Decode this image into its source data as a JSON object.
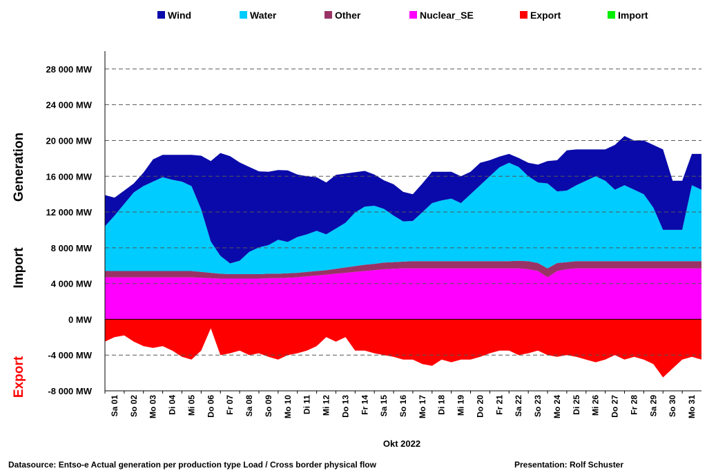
{
  "chart_data": {
    "type": "area",
    "x_title": "Okt 2022",
    "y_titles": {
      "generation": "Generation",
      "import": "Import",
      "export": "Export"
    },
    "export_color": "#ff0000",
    "ylim": [
      -8000,
      30000
    ],
    "y_ticks": [
      {
        "value": 28000,
        "label": "28 000 MW"
      },
      {
        "value": 24000,
        "label": "24 000 MW"
      },
      {
        "value": 20000,
        "label": "20 000 MW"
      },
      {
        "value": 16000,
        "label": "16 000 MW"
      },
      {
        "value": 12000,
        "label": "12 000 MW"
      },
      {
        "value": 8000,
        "label": "8 000 MW"
      },
      {
        "value": 4000,
        "label": "4 000 MW"
      },
      {
        "value": 0,
        "label": "0 MW"
      },
      {
        "value": -4000,
        "label": "-4 000 MW"
      },
      {
        "value": -8000,
        "label": "-8 000 MW"
      }
    ],
    "days": [
      "Sa 01",
      "So 02",
      "Mo 03",
      "Di 04",
      "Mi 05",
      "Do 06",
      "Fr 07",
      "Sa 08",
      "So 09",
      "Mo 10",
      "Di 11",
      "Mi 12",
      "Do 13",
      "Fr 14",
      "Sa 15",
      "So 16",
      "Mo 17",
      "Di 18",
      "Mi 19",
      "Do 20",
      "Fr 21",
      "Sa 22",
      "So 23",
      "Mo 24",
      "Di 25",
      "Mi 26",
      "Do 27",
      "Fr 28",
      "Sa 29",
      "So 30",
      "Mo 31"
    ],
    "legend": [
      {
        "name": "Wind",
        "color": "#0a0aaa"
      },
      {
        "name": "Water",
        "color": "#00ccff"
      },
      {
        "name": "Other",
        "color": "#993366"
      },
      {
        "name": "Nuclear_SE",
        "color": "#ff00ff"
      },
      {
        "name": "Export",
        "color": "#ff0000"
      },
      {
        "name": "Import",
        "color": "#00ee00"
      }
    ],
    "x": [
      0,
      0.5,
      1,
      1.5,
      2,
      2.5,
      3,
      3.5,
      4,
      4.5,
      5,
      5.5,
      6,
      6.5,
      7,
      7.5,
      8,
      8.5,
      9,
      9.5,
      10,
      10.5,
      11,
      11.5,
      12,
      12.5,
      13,
      13.5,
      14,
      14.5,
      15,
      15.5,
      16,
      16.5,
      17,
      17.5,
      18,
      18.5,
      19,
      19.5,
      20,
      20.5,
      21,
      21.5,
      22,
      22.5,
      23,
      23.5,
      24,
      24.5,
      25,
      25.5,
      26,
      26.5,
      27,
      27.5,
      28,
      28.5,
      29,
      29.5,
      30,
      30.5,
      31
    ],
    "series": [
      {
        "name": "Nuclear_SE",
        "values": [
          4700,
          4700,
          4700,
          4700,
          4700,
          4700,
          4700,
          4700,
          4700,
          4700,
          4650,
          4600,
          4550,
          4550,
          4550,
          4550,
          4550,
          4600,
          4600,
          4650,
          4700,
          4800,
          4900,
          5000,
          5100,
          5200,
          5300,
          5400,
          5500,
          5600,
          5650,
          5700,
          5700,
          5700,
          5700,
          5700,
          5700,
          5700,
          5700,
          5700,
          5700,
          5700,
          5700,
          5700,
          5600,
          5400,
          4700,
          5400,
          5600,
          5700,
          5700,
          5700,
          5700,
          5700,
          5700,
          5700,
          5700,
          5700,
          5700,
          5700,
          5700,
          5700,
          5700
        ]
      },
      {
        "name": "Other",
        "values": [
          700,
          700,
          700,
          700,
          700,
          700,
          700,
          700,
          700,
          700,
          650,
          600,
          550,
          500,
          500,
          500,
          500,
          500,
          500,
          500,
          500,
          500,
          500,
          500,
          550,
          600,
          650,
          700,
          700,
          750,
          750,
          750,
          800,
          800,
          800,
          800,
          800,
          800,
          800,
          800,
          800,
          800,
          800,
          850,
          900,
          900,
          1000,
          900,
          800,
          800,
          800,
          800,
          800,
          800,
          800,
          800,
          800,
          800,
          800,
          800,
          800,
          800,
          800
        ]
      },
      {
        "name": "Water",
        "values": [
          5000,
          6200,
          7500,
          8800,
          9500,
          10000,
          10500,
          10200,
          10000,
          9500,
          7000,
          3500,
          2000,
          1200,
          1500,
          2500,
          3000,
          3200,
          3800,
          3500,
          4000,
          4200,
          4500,
          4000,
          4500,
          5000,
          6000,
          6500,
          6500,
          6000,
          5200,
          4500,
          4500,
          5500,
          6500,
          6800,
          7000,
          6500,
          7500,
          8500,
          9500,
          10500,
          11000,
          10500,
          9500,
          9000,
          9500,
          8000,
          8000,
          8500,
          9000,
          9500,
          9000,
          8000,
          8500,
          8000,
          7500,
          6000,
          3500,
          3500,
          3500,
          8500,
          8000
        ]
      },
      {
        "name": "Wind",
        "values": [
          3500,
          2000,
          1500,
          1000,
          1500,
          2500,
          2500,
          2800,
          3000,
          3500,
          6000,
          9000,
          11500,
          12000,
          11000,
          9500,
          8500,
          8200,
          7800,
          8000,
          7000,
          6500,
          6000,
          5800,
          6000,
          5500,
          4500,
          4000,
          3500,
          3200,
          3500,
          3300,
          3000,
          3200,
          3500,
          3200,
          3000,
          3000,
          2500,
          2500,
          1800,
          1200,
          1000,
          1000,
          1500,
          2000,
          2500,
          3500,
          4500,
          4000,
          3500,
          3000,
          3500,
          5000,
          5500,
          5500,
          6000,
          7000,
          9000,
          5500,
          5500,
          3500,
          4000
        ]
      },
      {
        "name": "Export",
        "values": [
          -2500,
          -2000,
          -1800,
          -2500,
          -3000,
          -3200,
          -3000,
          -3500,
          -4200,
          -4500,
          -3500,
          -1000,
          -4000,
          -3800,
          -3500,
          -4000,
          -3800,
          -4200,
          -4500,
          -4000,
          -3800,
          -3500,
          -3000,
          -2000,
          -2500,
          -2000,
          -3500,
          -3500,
          -3800,
          -4000,
          -4200,
          -4500,
          -4500,
          -5000,
          -5200,
          -4500,
          -4800,
          -4500,
          -4500,
          -4200,
          -3800,
          -3500,
          -3500,
          -4000,
          -3800,
          -3500,
          -4000,
          -4200,
          -4000,
          -4200,
          -4500,
          -4800,
          -4500,
          -4000,
          -4500,
          -4200,
          -4500,
          -5000,
          -6500,
          -5500,
          -4500,
          -4200,
          -4500
        ]
      }
    ]
  },
  "footer": {
    "source": "Datasource: Entso-e  Actual generation per production type    Load   /  Cross border physical flow",
    "presentation": "Presentation: Rolf Schuster"
  }
}
